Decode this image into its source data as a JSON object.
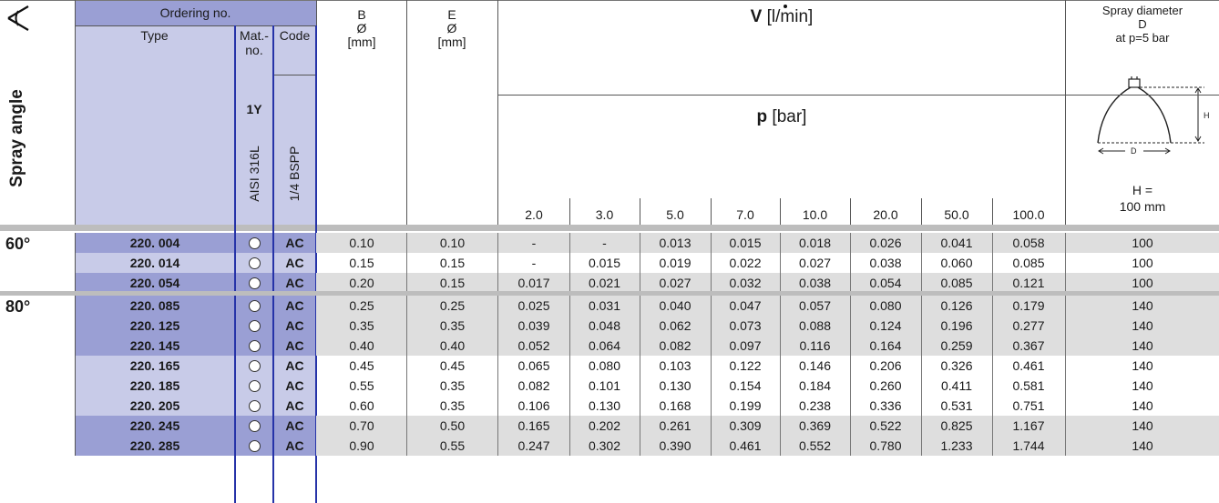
{
  "header": {
    "ordering_no": "Ordering no.",
    "type": "Type",
    "mat_no": "Mat.-\nno.",
    "code": "Code",
    "mat_id": "1Y",
    "material": "AISI 316L",
    "thread": "1/4 BSPP",
    "b_col": "B\nØ\n[mm]",
    "e_col": "E\nØ\n[mm]",
    "v_symbol": "V",
    "v_unit": " [l/min]",
    "p_symbol": "p",
    "p_unit": " [bar]",
    "spray_diameter": "Spray diameter\nD\nat p=5 bar",
    "h_value": "H =\n100 mm",
    "spray_angle": "Spray angle",
    "diagram_label_h": "H",
    "diagram_label_d": "D",
    "pressures": [
      "2.0",
      "3.0",
      "5.0",
      "7.0",
      "10.0",
      "20.0",
      "50.0",
      "100.0"
    ]
  },
  "groups": [
    {
      "angle": "60°",
      "rows": [
        {
          "type": "220. 004",
          "code": "AC",
          "b": "0.10",
          "e": "0.10",
          "flows": [
            "-",
            "-",
            "0.013",
            "0.015",
            "0.018",
            "0.026",
            "0.041",
            "0.058"
          ],
          "d": "100"
        },
        {
          "type": "220. 014",
          "code": "AC",
          "b": "0.15",
          "e": "0.15",
          "flows": [
            "-",
            "0.015",
            "0.019",
            "0.022",
            "0.027",
            "0.038",
            "0.060",
            "0.085"
          ],
          "d": "100"
        },
        {
          "type": "220. 054",
          "code": "AC",
          "b": "0.20",
          "e": "0.15",
          "flows": [
            "0.017",
            "0.021",
            "0.027",
            "0.032",
            "0.038",
            "0.054",
            "0.085",
            "0.121"
          ],
          "d": "100"
        }
      ]
    },
    {
      "angle": "80°",
      "rows": [
        {
          "type": "220. 085",
          "code": "AC",
          "b": "0.25",
          "e": "0.25",
          "flows": [
            "0.025",
            "0.031",
            "0.040",
            "0.047",
            "0.057",
            "0.080",
            "0.126",
            "0.179"
          ],
          "d": "140"
        },
        {
          "type": "220. 125",
          "code": "AC",
          "b": "0.35",
          "e": "0.35",
          "flows": [
            "0.039",
            "0.048",
            "0.062",
            "0.073",
            "0.088",
            "0.124",
            "0.196",
            "0.277"
          ],
          "d": "140"
        },
        {
          "type": "220. 145",
          "code": "AC",
          "b": "0.40",
          "e": "0.40",
          "flows": [
            "0.052",
            "0.064",
            "0.082",
            "0.097",
            "0.116",
            "0.164",
            "0.259",
            "0.367"
          ],
          "d": "140"
        },
        {
          "type": "220. 165",
          "code": "AC",
          "b": "0.45",
          "e": "0.45",
          "flows": [
            "0.065",
            "0.080",
            "0.103",
            "0.122",
            "0.146",
            "0.206",
            "0.326",
            "0.461"
          ],
          "d": "140"
        },
        {
          "type": "220. 185",
          "code": "AC",
          "b": "0.55",
          "e": "0.35",
          "flows": [
            "0.082",
            "0.101",
            "0.130",
            "0.154",
            "0.184",
            "0.260",
            "0.411",
            "0.581"
          ],
          "d": "140"
        },
        {
          "type": "220. 205",
          "code": "AC",
          "b": "0.60",
          "e": "0.35",
          "flows": [
            "0.106",
            "0.130",
            "0.168",
            "0.199",
            "0.238",
            "0.336",
            "0.531",
            "0.751"
          ],
          "d": "140"
        },
        {
          "type": "220. 245",
          "code": "AC",
          "b": "0.70",
          "e": "0.50",
          "flows": [
            "0.165",
            "0.202",
            "0.261",
            "0.309",
            "0.369",
            "0.522",
            "0.825",
            "1.167"
          ],
          "d": "140"
        },
        {
          "type": "220. 285",
          "code": "AC",
          "b": "0.90",
          "e": "0.55",
          "flows": [
            "0.247",
            "0.302",
            "0.390",
            "0.461",
            "0.552",
            "0.780",
            "1.233",
            "1.744"
          ],
          "d": "140"
        }
      ]
    }
  ],
  "colors": {
    "blue_light": "#c8cbe8",
    "blue_dark": "#9a9fd4",
    "blue_border": "#2633a8",
    "grey_band": "#dedede"
  }
}
